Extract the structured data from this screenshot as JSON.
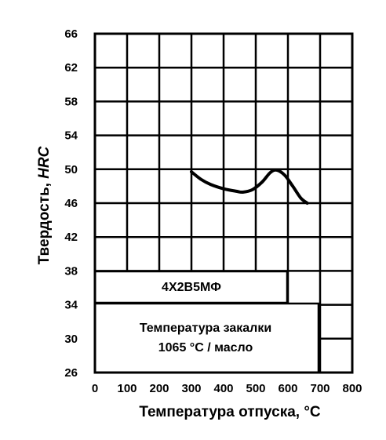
{
  "chart_data": {
    "type": "line",
    "xlabel": "Температура отпуска, °С",
    "ylabel_main": "Твердость, ",
    "ylabel_unit": "HRC",
    "xlim": [
      0,
      800
    ],
    "ylim": [
      26,
      66
    ],
    "x_ticks": [
      "0",
      "100",
      "200",
      "300",
      "400",
      "500",
      "600",
      "700",
      "800"
    ],
    "y_ticks": [
      "26",
      "30",
      "34",
      "38",
      "42",
      "46",
      "50",
      "54",
      "58",
      "62",
      "66"
    ],
    "grid": true,
    "series": [
      {
        "name": "4Х2В5МФ",
        "x": [
          300,
          330,
          360,
          400,
          440,
          460,
          490,
          520,
          545,
          565,
          590,
          615,
          640,
          660
        ],
        "y": [
          49.7,
          48.8,
          48.2,
          47.7,
          47.4,
          47.3,
          47.6,
          48.5,
          49.6,
          49.9,
          49.3,
          48.0,
          46.6,
          46.0
        ]
      }
    ],
    "annotations": {
      "grade_label": "4Х2В5МФ",
      "quench_line1": "Температура закалки",
      "quench_line2": "1065 °С / масло"
    }
  }
}
